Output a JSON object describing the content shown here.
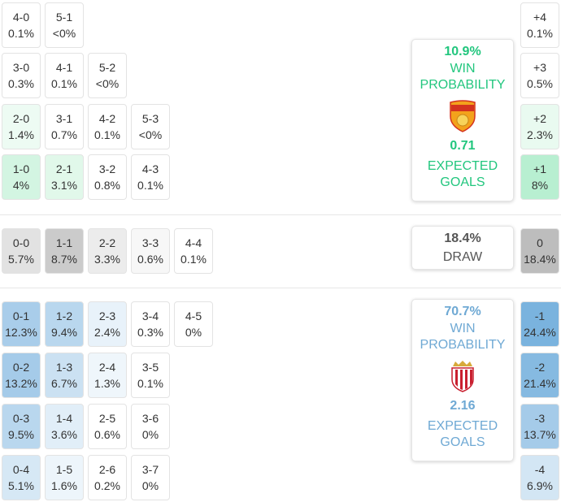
{
  "colors": {
    "home_accent": "#22c67e",
    "away_accent": "#6fa9d4",
    "draw_accent": "#555555"
  },
  "home_scores": [
    {
      "score": "4-0",
      "prob": "0.1%",
      "bg": "#ffffff"
    },
    {
      "score": "5-1",
      "prob": "<0%",
      "bg": "#ffffff"
    },
    {
      "score": "3-0",
      "prob": "0.3%",
      "bg": "#ffffff"
    },
    {
      "score": "4-1",
      "prob": "0.1%",
      "bg": "#ffffff"
    },
    {
      "score": "5-2",
      "prob": "<0%",
      "bg": "#ffffff"
    },
    {
      "score": "2-0",
      "prob": "1.4%",
      "bg": "#edfbf3"
    },
    {
      "score": "3-1",
      "prob": "0.7%",
      "bg": "#ffffff"
    },
    {
      "score": "4-2",
      "prob": "0.1%",
      "bg": "#ffffff"
    },
    {
      "score": "5-3",
      "prob": "<0%",
      "bg": "#ffffff"
    },
    {
      "score": "1-0",
      "prob": "4%",
      "bg": "#d3f5e2"
    },
    {
      "score": "2-1",
      "prob": "3.1%",
      "bg": "#e1f8ea"
    },
    {
      "score": "3-2",
      "prob": "0.8%",
      "bg": "#ffffff"
    },
    {
      "score": "4-3",
      "prob": "0.1%",
      "bg": "#ffffff"
    }
  ],
  "draw_scores": [
    {
      "score": "0-0",
      "prob": "5.7%",
      "bg": "#e2e2e2"
    },
    {
      "score": "1-1",
      "prob": "8.7%",
      "bg": "#cbcbcb"
    },
    {
      "score": "2-2",
      "prob": "3.3%",
      "bg": "#ececec"
    },
    {
      "score": "3-3",
      "prob": "0.6%",
      "bg": "#f7f7f7"
    },
    {
      "score": "4-4",
      "prob": "0.1%",
      "bg": "#ffffff"
    }
  ],
  "away_scores": [
    {
      "score": "0-1",
      "prob": "12.3%",
      "bg": "#a9cdea"
    },
    {
      "score": "1-2",
      "prob": "9.4%",
      "bg": "#b9d7ee"
    },
    {
      "score": "2-3",
      "prob": "2.4%",
      "bg": "#e8f2fa"
    },
    {
      "score": "3-4",
      "prob": "0.3%",
      "bg": "#ffffff"
    },
    {
      "score": "4-5",
      "prob": "0%",
      "bg": "#ffffff"
    },
    {
      "score": "0-2",
      "prob": "13.2%",
      "bg": "#a5cbe9"
    },
    {
      "score": "1-3",
      "prob": "6.7%",
      "bg": "#cbe1f2"
    },
    {
      "score": "2-4",
      "prob": "1.3%",
      "bg": "#eff6fb"
    },
    {
      "score": "3-5",
      "prob": "0.1%",
      "bg": "#ffffff"
    },
    {
      "score": "0-3",
      "prob": "9.5%",
      "bg": "#b9d7ee"
    },
    {
      "score": "1-4",
      "prob": "3.6%",
      "bg": "#e1eef8"
    },
    {
      "score": "2-5",
      "prob": "0.6%",
      "bg": "#ffffff"
    },
    {
      "score": "3-6",
      "prob": "0%",
      "bg": "#ffffff"
    },
    {
      "score": "0-4",
      "prob": "5.1%",
      "bg": "#d6e8f5"
    },
    {
      "score": "1-5",
      "prob": "1.6%",
      "bg": "#edf5fb"
    },
    {
      "score": "2-6",
      "prob": "0.2%",
      "bg": "#ffffff"
    },
    {
      "score": "3-7",
      "prob": "0%",
      "bg": "#ffffff"
    }
  ],
  "margins": [
    {
      "label": "+4",
      "prob": "0.1%",
      "bg": "#ffffff"
    },
    {
      "label": "+3",
      "prob": "0.5%",
      "bg": "#ffffff"
    },
    {
      "label": "+2",
      "prob": "2.3%",
      "bg": "#e9faf0"
    },
    {
      "label": "+1",
      "prob": "8%",
      "bg": "#b8efd1"
    },
    {
      "label": "0",
      "prob": "18.4%",
      "bg": "#bdbdbd"
    },
    {
      "label": "-1",
      "prob": "24.4%",
      "bg": "#7ab3de"
    },
    {
      "label": "-2",
      "prob": "21.4%",
      "bg": "#86bae1"
    },
    {
      "label": "-3",
      "prob": "13.7%",
      "bg": "#a5cbe9"
    },
    {
      "label": "-4",
      "prob": "6.9%",
      "bg": "#d3e6f4"
    }
  ],
  "home_card": {
    "win_pct": "10.9%",
    "win_label_1": "WIN",
    "win_label_2": "PROBABILITY",
    "xg": "0.71",
    "xg_label_1": "EXPECTED",
    "xg_label_2": "GOALS",
    "crest_icon": "orleans-crest-icon"
  },
  "draw_card": {
    "pct": "18.4%",
    "label": "DRAW"
  },
  "away_card": {
    "win_pct": "70.7%",
    "win_label_1": "WIN",
    "win_label_2": "PROBABILITY",
    "xg": "2.16",
    "xg_label_1": "EXPECTED",
    "xg_label_2": "GOALS",
    "crest_icon": "monaco-crest-icon"
  }
}
